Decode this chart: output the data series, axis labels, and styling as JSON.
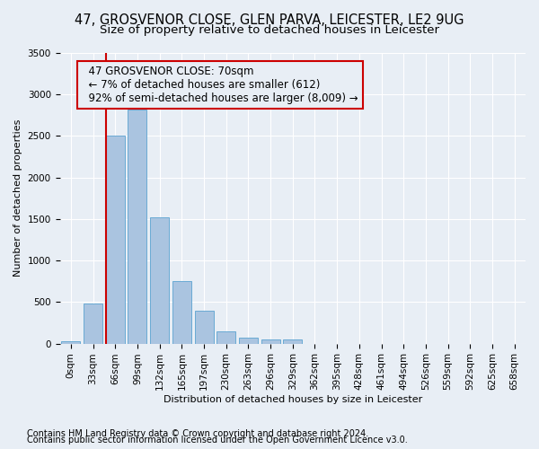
{
  "title1": "47, GROSVENOR CLOSE, GLEN PARVA, LEICESTER, LE2 9UG",
  "title2": "Size of property relative to detached houses in Leicester",
  "xlabel": "Distribution of detached houses by size in Leicester",
  "ylabel": "Number of detached properties",
  "footnote1": "Contains HM Land Registry data © Crown copyright and database right 2024.",
  "footnote2": "Contains public sector information licensed under the Open Government Licence v3.0.",
  "bar_labels": [
    "0sqm",
    "33sqm",
    "66sqm",
    "99sqm",
    "132sqm",
    "165sqm",
    "197sqm",
    "230sqm",
    "263sqm",
    "296sqm",
    "329sqm",
    "362sqm",
    "395sqm",
    "428sqm",
    "461sqm",
    "494sqm",
    "526sqm",
    "559sqm",
    "592sqm",
    "625sqm",
    "658sqm"
  ],
  "bar_values": [
    25,
    480,
    2510,
    2820,
    1520,
    750,
    395,
    145,
    75,
    55,
    55,
    0,
    0,
    0,
    0,
    0,
    0,
    0,
    0,
    0,
    0
  ],
  "bar_color": "#aac4e0",
  "bar_edgecolor": "#6aaad4",
  "ylim": [
    0,
    3500
  ],
  "yticks": [
    0,
    500,
    1000,
    1500,
    2000,
    2500,
    3000,
    3500
  ],
  "vline_color": "#cc0000",
  "annotation_line1": "  47 GROSVENOR CLOSE: 70sqm",
  "annotation_line2": "  ← 7% of detached houses are smaller (612)",
  "annotation_line3": "  92% of semi-detached houses are larger (8,009) →",
  "annotation_box_color": "#cc0000",
  "bg_color": "#e8eef5",
  "grid_color": "#ffffff",
  "title1_fontsize": 10.5,
  "title2_fontsize": 9.5,
  "axis_fontsize": 8,
  "tick_fontsize": 7.5,
  "annotation_fontsize": 8.5,
  "footnote_fontsize": 7
}
